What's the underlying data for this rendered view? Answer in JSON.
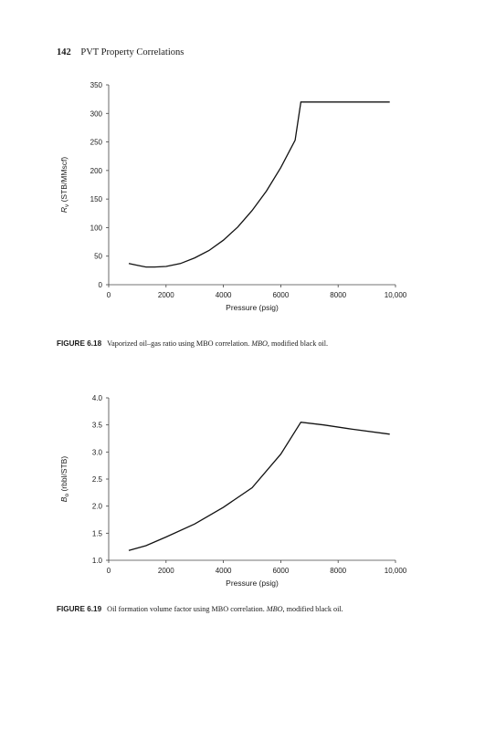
{
  "header": {
    "page_number": "142",
    "running_title": "PVT Property Correlations"
  },
  "figures": [
    {
      "caption_label": "FIGURE 6.18",
      "caption_text_a": "Vaporized oil–gas ratio using MBO correlation. ",
      "caption_abbr": "MBO",
      "caption_text_b": ", modified black oil."
    },
    {
      "caption_label": "FIGURE 6.19",
      "caption_text_a": "Oil formation volume factor using MBO correlation. ",
      "caption_abbr": "MBO",
      "caption_text_b": ", modified black oil."
    }
  ],
  "chart_data": [
    {
      "type": "line",
      "xlabel": "Pressure (psig)",
      "ylabel_main": "R",
      "ylabel_sub": "v",
      "ylabel_rest": " (STB/MMscf)",
      "xlim": [
        0,
        10000
      ],
      "ylim": [
        0,
        350
      ],
      "xticks": [
        0,
        2000,
        4000,
        6000,
        8000,
        10000
      ],
      "xtick_labels": [
        "0",
        "2000",
        "4000",
        "6000",
        "8000",
        "10,000"
      ],
      "yticks": [
        0,
        50,
        100,
        150,
        200,
        250,
        300,
        350
      ],
      "ytick_labels": [
        "0",
        "50",
        "100",
        "150",
        "200",
        "250",
        "300",
        "350"
      ],
      "grid": false,
      "series": [
        {
          "x": [
            700,
            1000,
            1300,
            1600,
            2000,
            2500,
            3000,
            3500,
            4000,
            4500,
            5000,
            5500,
            6000,
            6500,
            6700,
            8000,
            9000,
            9800
          ],
          "values": [
            37,
            34,
            31,
            31,
            32,
            37,
            47,
            60,
            78,
            101,
            130,
            164,
            205,
            253,
            320,
            320,
            320,
            320
          ]
        }
      ]
    },
    {
      "type": "line",
      "xlabel": "Pressure (psig)",
      "ylabel_main": "B",
      "ylabel_sub": "o",
      "ylabel_rest": " (rbbl/STB)",
      "xlim": [
        0,
        10000
      ],
      "ylim": [
        1.0,
        4.0
      ],
      "xticks": [
        0,
        2000,
        4000,
        6000,
        8000,
        10000
      ],
      "xtick_labels": [
        "0",
        "2000",
        "4000",
        "6000",
        "8000",
        "10,000"
      ],
      "yticks": [
        1.0,
        1.5,
        2.0,
        2.5,
        3.0,
        3.5,
        4.0
      ],
      "ytick_labels": [
        "1.0",
        "1.5",
        "2.0",
        "2.5",
        "3.0",
        "3.5",
        "4.0"
      ],
      "grid": false,
      "series": [
        {
          "x": [
            700,
            1300,
            2000,
            3000,
            4000,
            5000,
            6000,
            6700,
            7500,
            8500,
            9800
          ],
          "values": [
            1.18,
            1.27,
            1.43,
            1.67,
            1.98,
            2.34,
            2.96,
            3.55,
            3.5,
            3.42,
            3.33
          ]
        }
      ]
    }
  ]
}
